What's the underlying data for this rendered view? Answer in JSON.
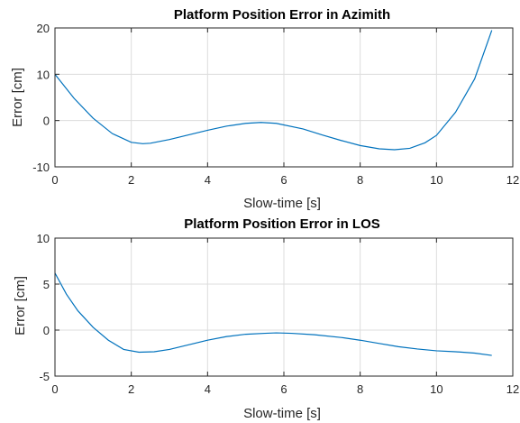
{
  "colors": {
    "series": "#0072BD",
    "grid": "#DCDCDC",
    "axis": "#262626",
    "background": "#FFFFFF"
  },
  "chart_data": [
    {
      "type": "line",
      "title": "Platform Position Error in Azimith",
      "xlabel": "Slow-time [s]",
      "ylabel": "Error [cm]",
      "xlim": [
        0,
        12
      ],
      "ylim": [
        -10,
        20
      ],
      "xticks": [
        0,
        2,
        4,
        6,
        8,
        10,
        12
      ],
      "yticks": [
        -10,
        0,
        10,
        20
      ],
      "grid": true,
      "series": [
        {
          "x": [
            0,
            0.5,
            1,
            1.5,
            2,
            2.3,
            2.5,
            3,
            3.5,
            4,
            4.5,
            5,
            5.4,
            5.8,
            6.5,
            7,
            7.5,
            8,
            8.5,
            8.9,
            9.3,
            9.7,
            10,
            10.5,
            11,
            11.45
          ],
          "y": [
            10,
            4.8,
            0.5,
            -2.8,
            -4.7,
            -5,
            -4.9,
            -4.1,
            -3.1,
            -2.1,
            -1.2,
            -0.6,
            -0.4,
            -0.6,
            -1.8,
            -3.1,
            -4.3,
            -5.4,
            -6.1,
            -6.3,
            -6,
            -4.8,
            -3.2,
            1.8,
            9,
            19.5
          ]
        }
      ]
    },
    {
      "type": "line",
      "title": "Platform Position Error in LOS",
      "xlabel": "Slow-time [s]",
      "ylabel": "Error [cm]",
      "xlim": [
        0,
        12
      ],
      "ylim": [
        -5,
        10
      ],
      "xticks": [
        0,
        2,
        4,
        6,
        8,
        10,
        12
      ],
      "yticks": [
        -5,
        0,
        5,
        10
      ],
      "grid": true,
      "series": [
        {
          "x": [
            0,
            0.3,
            0.6,
            1,
            1.4,
            1.8,
            2.2,
            2.6,
            3,
            3.5,
            4,
            4.5,
            5,
            5.5,
            5.8,
            6.2,
            6.8,
            7.5,
            8,
            8.5,
            9,
            9.5,
            10,
            10.5,
            11,
            11.45
          ],
          "y": [
            6.2,
            3.9,
            2.1,
            0.3,
            -1.1,
            -2.1,
            -2.4,
            -2.35,
            -2.1,
            -1.6,
            -1.1,
            -0.7,
            -0.45,
            -0.35,
            -0.3,
            -0.35,
            -0.5,
            -0.8,
            -1.1,
            -1.45,
            -1.8,
            -2.05,
            -2.25,
            -2.35,
            -2.5,
            -2.75
          ]
        }
      ]
    }
  ]
}
